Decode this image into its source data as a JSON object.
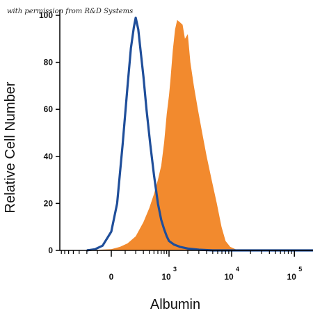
{
  "watermark": "with permission from R&D Systems",
  "chart_data": {
    "type": "area",
    "xlabel": "Albumin",
    "ylabel": "Relative Cell Number",
    "x_scale": "biexponential",
    "x_ticks": [
      {
        "value": 0,
        "base": "0",
        "exp": ""
      },
      {
        "value": 1000,
        "base": "10",
        "exp": "3"
      },
      {
        "value": 10000,
        "base": "10",
        "exp": "4"
      },
      {
        "value": 100000,
        "base": "10",
        "exp": "5"
      }
    ],
    "ylim": [
      0,
      100
    ],
    "y_ticks": [
      0,
      20,
      40,
      60,
      80,
      100
    ],
    "grid": false,
    "series": [
      {
        "style": "outline",
        "color": "#1f4e9a",
        "points": [
          [
            -200,
            0
          ],
          [
            -120,
            0.5
          ],
          [
            -60,
            2
          ],
          [
            0,
            8
          ],
          [
            40,
            20
          ],
          [
            80,
            45
          ],
          [
            120,
            70
          ],
          [
            150,
            86
          ],
          [
            180,
            95
          ],
          [
            200,
            99
          ],
          [
            230,
            94
          ],
          [
            260,
            85
          ],
          [
            300,
            74
          ],
          [
            350,
            60
          ],
          [
            420,
            45
          ],
          [
            500,
            32
          ],
          [
            600,
            20
          ],
          [
            700,
            13
          ],
          [
            800,
            9
          ],
          [
            900,
            6
          ],
          [
            1000,
            4
          ],
          [
            1200,
            2.5
          ],
          [
            1500,
            1.5
          ],
          [
            2000,
            0.8
          ],
          [
            3000,
            0.3
          ],
          [
            5000,
            0
          ],
          [
            300000,
            0
          ]
        ]
      },
      {
        "style": "filled",
        "color": "#f28a2e",
        "points": [
          [
            -220,
            0
          ],
          [
            0,
            0.5
          ],
          [
            60,
            1.5
          ],
          [
            120,
            3
          ],
          [
            200,
            6
          ],
          [
            300,
            12
          ],
          [
            400,
            18
          ],
          [
            500,
            24
          ],
          [
            600,
            30
          ],
          [
            700,
            36
          ],
          [
            800,
            46
          ],
          [
            900,
            58
          ],
          [
            1000,
            66
          ],
          [
            1050,
            72
          ],
          [
            1150,
            85
          ],
          [
            1250,
            94
          ],
          [
            1350,
            98
          ],
          [
            1500,
            97
          ],
          [
            1650,
            96
          ],
          [
            1800,
            90
          ],
          [
            2000,
            92
          ],
          [
            2200,
            80
          ],
          [
            2500,
            70
          ],
          [
            2900,
            60
          ],
          [
            3400,
            50
          ],
          [
            4000,
            40
          ],
          [
            4800,
            30
          ],
          [
            5800,
            20
          ],
          [
            6900,
            10
          ],
          [
            8000,
            4
          ],
          [
            9500,
            1.5
          ],
          [
            12000,
            0.3
          ],
          [
            15000,
            0
          ]
        ]
      }
    ]
  }
}
